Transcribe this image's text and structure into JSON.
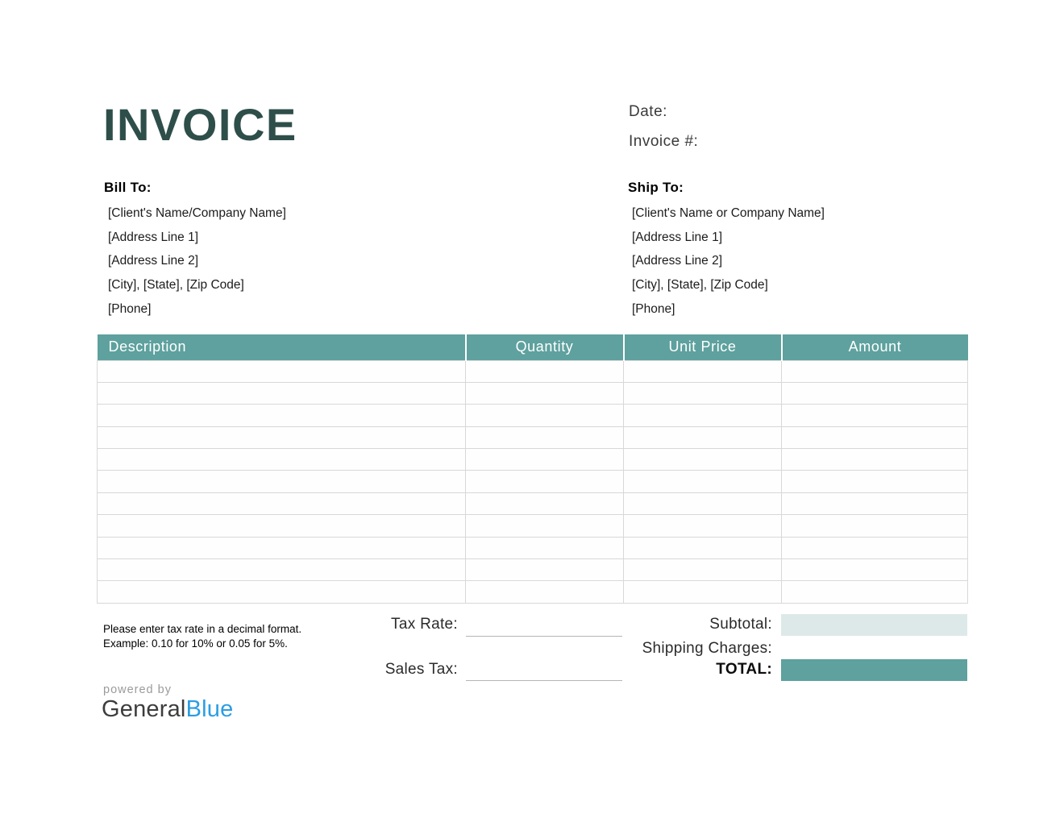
{
  "page": {
    "title": "INVOICE"
  },
  "meta": {
    "date_label": "Date:",
    "invoice_number_label": "Invoice #:"
  },
  "bill_to": {
    "heading": "Bill To:",
    "lines": [
      "[Client's Name/Company Name]",
      "[Address Line 1]",
      "[Address Line 2]",
      "[City], [State], [Zip Code]",
      "[Phone]"
    ]
  },
  "ship_to": {
    "heading": "Ship To:",
    "lines": [
      "[Client's Name or Company Name]",
      "[Address Line 1]",
      "[Address Line 2]",
      "[City], [State], [Zip Code]",
      "[Phone]"
    ]
  },
  "items_table": {
    "columns": [
      "Description",
      "Quantity",
      "Unit Price",
      "Amount"
    ],
    "row_count": 11,
    "cell_values": ""
  },
  "tax_note": {
    "line1": "Please enter tax rate in a decimal format.",
    "line2": "Example: 0.10 for 10% or 0.05 for 5%."
  },
  "totals": {
    "tax_rate_label": "Tax Rate:",
    "tax_rate_value": "",
    "sales_tax_label": "Sales Tax:",
    "sales_tax_value": "",
    "subtotal_label": "Subtotal:",
    "subtotal_value": "",
    "shipping_label": "Shipping Charges:",
    "shipping_value": "",
    "total_label": "TOTAL:",
    "total_value": ""
  },
  "footer": {
    "powered_by": "powered by",
    "brand_first": "General",
    "brand_second": "Blue"
  },
  "colors": {
    "accent_teal": "#5ea19e",
    "subtotal_fill": "#dde9e8",
    "title_dark_teal": "#2e4e4a",
    "brand_blue": "#2b9de2",
    "grid_line": "#d8d8d8"
  }
}
